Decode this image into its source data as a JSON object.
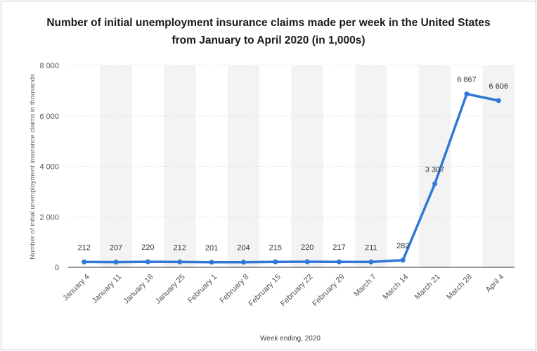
{
  "chart_data": {
    "type": "line",
    "title_line1": "Number of initial unemployment insurance claims made per week in the United States",
    "title_line2": "from January to April 2020 (in 1,000s)",
    "xlabel": "Week ending, 2020",
    "ylabel": "Number of initial unemployment insurance claims in thousands",
    "categories": [
      "January 4",
      "January 11",
      "January 18",
      "January 25",
      "February 1",
      "February 8",
      "February 15",
      "February 22",
      "February 29",
      "March 7",
      "March 14",
      "March 21",
      "March 28",
      "April 4"
    ],
    "values": [
      212,
      207,
      220,
      212,
      201,
      204,
      215,
      220,
      217,
      211,
      282,
      3307,
      6867,
      6606
    ],
    "value_labels": [
      "212",
      "207",
      "220",
      "212",
      "201",
      "204",
      "215",
      "220",
      "217",
      "211",
      "282",
      "3 307",
      "6 867",
      "6 606"
    ],
    "ylim": [
      0,
      8000
    ],
    "yticks": [
      0,
      2000,
      4000,
      6000,
      8000
    ],
    "ytick_labels": [
      "0",
      "2 000",
      "4 000",
      "6 000",
      "8 000"
    ],
    "grid": true,
    "colors": {
      "line": "#2f78d6",
      "band": "#f3f3f3"
    }
  }
}
